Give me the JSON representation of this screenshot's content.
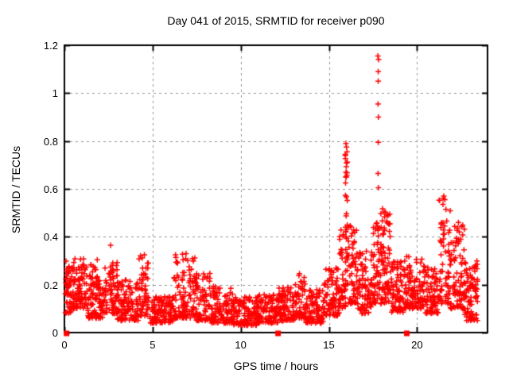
{
  "page": {
    "background": "#ffffff"
  },
  "chart_data": {
    "type": "scatter",
    "title": "Day 041 of 2015, SRMTID for receiver p090",
    "xlabel": "GPS time / hours",
    "ylabel": "SRMTID / TECUs",
    "xlim": [
      0,
      24
    ],
    "ylim": [
      0,
      1.2
    ],
    "xtick_values": [
      0,
      5,
      10,
      15,
      20
    ],
    "xtick_labels": [
      "0",
      "5",
      "10",
      "15",
      "20"
    ],
    "ytick_values": [
      0,
      0.2,
      0.4,
      0.6,
      0.8,
      1.0,
      1.2
    ],
    "ytick_labels": [
      "0",
      "0.2",
      "0.4",
      "0.6",
      "0.8",
      "1",
      "1.2"
    ],
    "grid": {
      "visible": true,
      "style": "dashed",
      "color": "#909090"
    },
    "border_color": "#000000",
    "marker": {
      "shape": "plus",
      "color": "#ff0000",
      "size": 7
    },
    "zero_markers": {
      "shape": "filled-square",
      "color": "#ff0000",
      "size": 7,
      "times": [
        0.12,
        12.12,
        19.42
      ]
    },
    "outlier_points": [
      [
        2.62,
        0.365
      ],
      [
        17.78,
        1.155
      ],
      [
        17.82,
        1.14
      ],
      [
        17.8,
        1.09
      ],
      [
        17.8,
        1.05
      ],
      [
        17.79,
        0.955
      ],
      [
        17.81,
        0.9
      ],
      [
        17.8,
        0.795
      ],
      [
        17.79,
        0.665
      ],
      [
        17.81,
        0.605
      ],
      [
        15.97,
        0.79
      ],
      [
        16.0,
        0.775
      ],
      [
        16.03,
        0.755
      ],
      [
        21.52,
        0.57
      ],
      [
        21.58,
        0.555
      ],
      [
        21.47,
        0.535
      ],
      [
        21.64,
        0.515
      ],
      [
        22.35,
        0.46
      ],
      [
        22.4,
        0.42
      ]
    ],
    "band_segments": [
      {
        "t0": 0.05,
        "t1": 0.4,
        "n": 45,
        "vmin": 0.08,
        "vmax": 0.3,
        "skew": 1.3
      },
      {
        "t0": 0.4,
        "t1": 1.3,
        "n": 90,
        "vmin": 0.1,
        "vmax": 0.31,
        "skew": 1.5
      },
      {
        "t0": 1.3,
        "t1": 2.3,
        "n": 100,
        "vmin": 0.06,
        "vmax": 0.24,
        "skew": 1.6
      },
      {
        "t0": 1.5,
        "t1": 2.0,
        "n": 8,
        "vmin": 0.22,
        "vmax": 0.31,
        "skew": 1.0
      },
      {
        "t0": 2.3,
        "t1": 3.0,
        "n": 70,
        "vmin": 0.08,
        "vmax": 0.3,
        "skew": 1.6
      },
      {
        "t0": 3.0,
        "t1": 4.2,
        "n": 110,
        "vmin": 0.05,
        "vmax": 0.22,
        "skew": 1.6
      },
      {
        "t0": 4.2,
        "t1": 4.8,
        "n": 55,
        "vmin": 0.07,
        "vmax": 0.33,
        "skew": 1.7
      },
      {
        "t0": 4.8,
        "t1": 6.2,
        "n": 120,
        "vmin": 0.04,
        "vmax": 0.15,
        "skew": 1.4
      },
      {
        "t0": 6.2,
        "t1": 7.4,
        "n": 110,
        "vmin": 0.06,
        "vmax": 0.33,
        "skew": 1.8
      },
      {
        "t0": 7.4,
        "t1": 8.3,
        "n": 85,
        "vmin": 0.05,
        "vmax": 0.25,
        "skew": 1.8
      },
      {
        "t0": 8.3,
        "t1": 9.6,
        "n": 110,
        "vmin": 0.04,
        "vmax": 0.2,
        "skew": 1.7
      },
      {
        "t0": 9.6,
        "t1": 10.9,
        "n": 110,
        "vmin": 0.03,
        "vmax": 0.15,
        "skew": 1.5
      },
      {
        "t0": 10.9,
        "t1": 12.1,
        "n": 110,
        "vmin": 0.04,
        "vmax": 0.16,
        "skew": 1.5
      },
      {
        "t0": 12.1,
        "t1": 13.1,
        "n": 90,
        "vmin": 0.05,
        "vmax": 0.19,
        "skew": 1.5
      },
      {
        "t0": 13.1,
        "t1": 13.7,
        "n": 55,
        "vmin": 0.06,
        "vmax": 0.25,
        "skew": 1.6
      },
      {
        "t0": 13.7,
        "t1": 14.7,
        "n": 90,
        "vmin": 0.04,
        "vmax": 0.18,
        "skew": 1.5
      },
      {
        "t0": 14.7,
        "t1": 15.6,
        "n": 80,
        "vmin": 0.07,
        "vmax": 0.28,
        "skew": 1.6
      },
      {
        "t0": 15.6,
        "t1": 15.95,
        "n": 40,
        "vmin": 0.1,
        "vmax": 0.45,
        "skew": 1.8
      },
      {
        "t0": 15.93,
        "t1": 16.07,
        "n": 34,
        "vmin": 0.15,
        "vmax": 0.8,
        "skew": 1.0
      },
      {
        "t0": 16.1,
        "t1": 16.6,
        "n": 55,
        "vmin": 0.12,
        "vmax": 0.46,
        "skew": 1.6
      },
      {
        "t0": 16.6,
        "t1": 17.5,
        "n": 85,
        "vmin": 0.08,
        "vmax": 0.35,
        "skew": 1.6
      },
      {
        "t0": 17.5,
        "t1": 18.0,
        "n": 60,
        "vmin": 0.12,
        "vmax": 0.5,
        "skew": 1.5
      },
      {
        "t0": 18.0,
        "t1": 18.5,
        "n": 70,
        "vmin": 0.12,
        "vmax": 0.52,
        "skew": 1.5
      },
      {
        "t0": 18.5,
        "t1": 19.3,
        "n": 80,
        "vmin": 0.08,
        "vmax": 0.3,
        "skew": 1.6
      },
      {
        "t0": 19.3,
        "t1": 20.4,
        "n": 100,
        "vmin": 0.1,
        "vmax": 0.32,
        "skew": 1.5
      },
      {
        "t0": 20.4,
        "t1": 21.2,
        "n": 80,
        "vmin": 0.08,
        "vmax": 0.28,
        "skew": 1.6
      },
      {
        "t0": 21.2,
        "t1": 21.9,
        "n": 70,
        "vmin": 0.12,
        "vmax": 0.57,
        "skew": 1.8
      },
      {
        "t0": 21.9,
        "t1": 22.7,
        "n": 80,
        "vmin": 0.1,
        "vmax": 0.46,
        "skew": 1.7
      },
      {
        "t0": 22.7,
        "t1": 23.45,
        "n": 85,
        "vmin": 0.05,
        "vmax": 0.3,
        "skew": 1.5
      }
    ],
    "seed": 42
  }
}
